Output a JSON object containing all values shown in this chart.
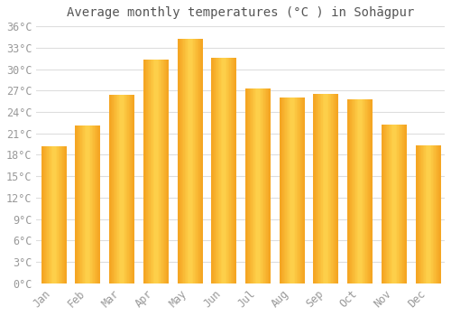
{
  "title": "Average monthly temperatures (°C ) in Sohāgpur",
  "months": [
    "Jan",
    "Feb",
    "Mar",
    "Apr",
    "May",
    "Jun",
    "Jul",
    "Aug",
    "Sep",
    "Oct",
    "Nov",
    "Dec"
  ],
  "temperatures": [
    19.2,
    22.0,
    26.3,
    31.3,
    34.2,
    31.5,
    27.2,
    26.0,
    26.5,
    25.7,
    22.2,
    19.3
  ],
  "bar_color_center": "#FFD54F",
  "bar_color_edge": "#F5A623",
  "ylim": [
    0,
    36
  ],
  "yticks": [
    0,
    3,
    6,
    9,
    12,
    15,
    18,
    21,
    24,
    27,
    30,
    33,
    36
  ],
  "ytick_labels": [
    "0°C",
    "3°C",
    "6°C",
    "9°C",
    "12°C",
    "15°C",
    "18°C",
    "21°C",
    "24°C",
    "27°C",
    "30°C",
    "33°C",
    "36°C"
  ],
  "background_color": "#ffffff",
  "grid_color": "#dddddd",
  "title_fontsize": 10,
  "tick_fontsize": 8.5,
  "tick_color": "#999999",
  "title_color": "#555555"
}
